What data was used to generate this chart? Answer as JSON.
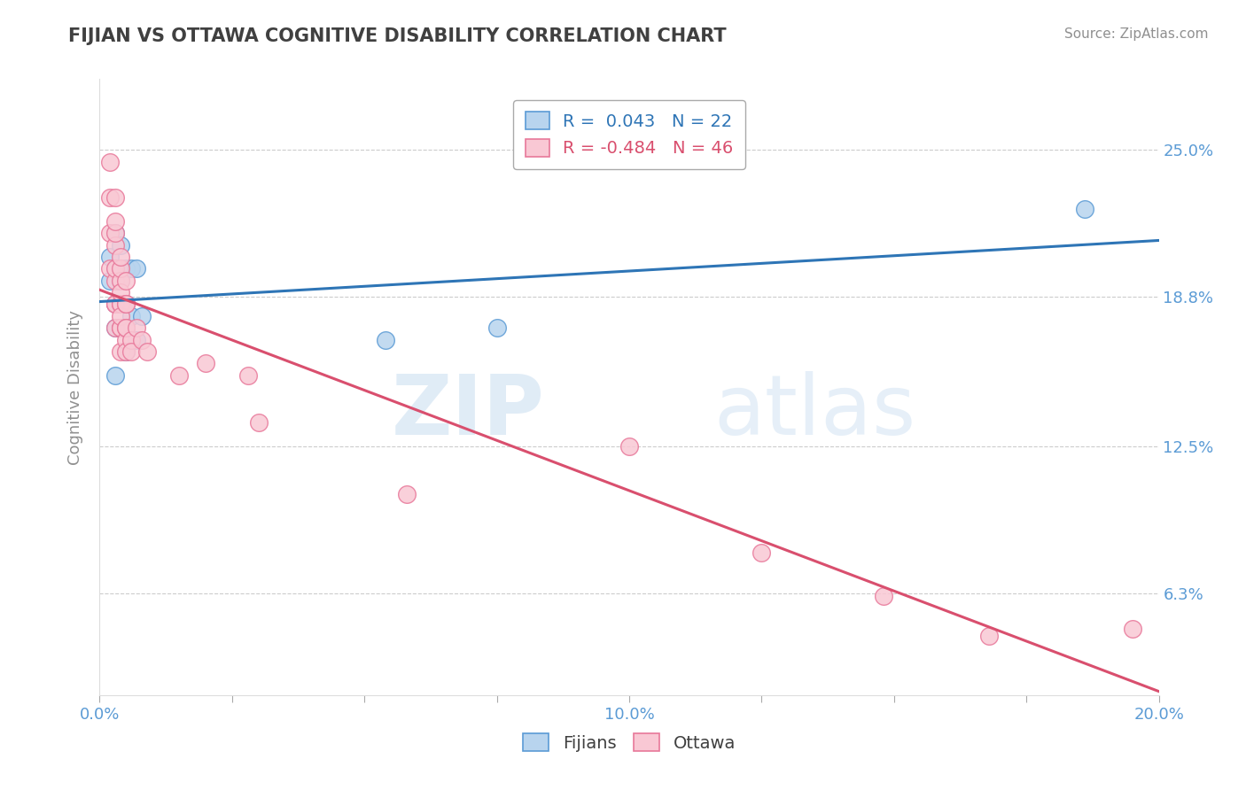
{
  "title": "FIJIAN VS OTTAWA COGNITIVE DISABILITY CORRELATION CHART",
  "source": "Source: ZipAtlas.com",
  "ylabel": "Cognitive Disability",
  "xlim": [
    0.0,
    0.2
  ],
  "ylim": [
    0.02,
    0.28
  ],
  "yticks_right": [
    0.063,
    0.125,
    0.188,
    0.25
  ],
  "ytick_right_labels": [
    "6.3%",
    "12.5%",
    "18.8%",
    "25.0%"
  ],
  "xticks": [
    0.0,
    0.025,
    0.05,
    0.075,
    0.1,
    0.125,
    0.15,
    0.175,
    0.2
  ],
  "xtick_labels": [
    "0.0%",
    "",
    "",
    "",
    "",
    "",
    "",
    "",
    "20.0%"
  ],
  "xtick_labeled": [
    0.0,
    0.1,
    0.2
  ],
  "xtick_labeled_labels": [
    "0.0%",
    "10.0%",
    "20.0%"
  ],
  "fijian_color": "#b8d4ee",
  "fijian_edge_color": "#5b9bd5",
  "ottawa_color": "#f9c8d4",
  "ottawa_edge_color": "#e8789a",
  "fijian_line_color": "#2e75b6",
  "ottawa_line_color": "#d94f6e",
  "fijian_R": 0.043,
  "fijian_N": 22,
  "ottawa_R": -0.484,
  "ottawa_N": 46,
  "legend_label_fijian": "Fijians",
  "legend_label_ottawa": "Ottawa",
  "watermark_zip": "ZIP",
  "watermark_atlas": "atlas",
  "background_color": "#ffffff",
  "grid_color": "#cccccc",
  "title_color": "#404040",
  "axis_tick_color": "#5b9bd5",
  "fijian_points_x": [
    0.002,
    0.002,
    0.003,
    0.003,
    0.003,
    0.003,
    0.003,
    0.004,
    0.004,
    0.004,
    0.004,
    0.005,
    0.005,
    0.005,
    0.006,
    0.006,
    0.007,
    0.007,
    0.008,
    0.054,
    0.075,
    0.186
  ],
  "fijian_points_y": [
    0.195,
    0.205,
    0.155,
    0.175,
    0.185,
    0.2,
    0.215,
    0.175,
    0.195,
    0.21,
    0.185,
    0.165,
    0.185,
    0.2,
    0.18,
    0.2,
    0.17,
    0.2,
    0.18,
    0.17,
    0.175,
    0.225
  ],
  "ottawa_points_x": [
    0.002,
    0.002,
    0.002,
    0.002,
    0.003,
    0.003,
    0.003,
    0.003,
    0.003,
    0.003,
    0.003,
    0.003,
    0.003,
    0.003,
    0.004,
    0.004,
    0.004,
    0.004,
    0.004,
    0.004,
    0.004,
    0.004,
    0.004,
    0.004,
    0.005,
    0.005,
    0.005,
    0.005,
    0.005,
    0.005,
    0.005,
    0.006,
    0.006,
    0.007,
    0.008,
    0.009,
    0.015,
    0.02,
    0.028,
    0.03,
    0.058,
    0.1,
    0.125,
    0.148,
    0.168,
    0.195
  ],
  "ottawa_points_y": [
    0.2,
    0.215,
    0.23,
    0.245,
    0.185,
    0.185,
    0.195,
    0.2,
    0.21,
    0.215,
    0.22,
    0.23,
    0.185,
    0.175,
    0.185,
    0.195,
    0.2,
    0.205,
    0.185,
    0.175,
    0.165,
    0.175,
    0.19,
    0.18,
    0.17,
    0.175,
    0.185,
    0.185,
    0.195,
    0.175,
    0.165,
    0.17,
    0.165,
    0.175,
    0.17,
    0.165,
    0.155,
    0.16,
    0.155,
    0.135,
    0.105,
    0.125,
    0.08,
    0.062,
    0.045,
    0.048
  ]
}
